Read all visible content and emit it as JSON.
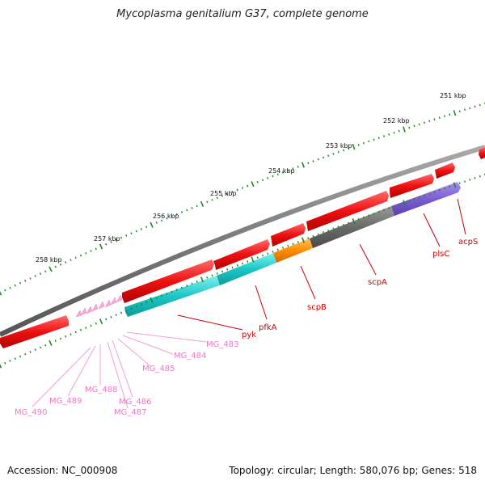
{
  "title": "Mycoplasma genitalium G37, complete genome",
  "footer": {
    "accession": "Accession: NC_000908",
    "summary": "Topology: circular; Length: 580,076 bp; Genes: 518"
  },
  "colors": {
    "red_gene": "#ee1111",
    "cyan_gene": "#1cc6c6",
    "orange_gene": "#ff8c00",
    "gray_gene": "#6a6a6a",
    "purple_gene": "#7b5fd0",
    "pink_gene": "#f7a8d8",
    "backbone": "#7a7a7a",
    "tick": "#228822",
    "dark_label": "#cc0000",
    "pink_label": "#e87cc0"
  },
  "scale_labels": [
    "251 kbp",
    "252 kbp",
    "253 kbp",
    "254 kbp",
    "255 kbp",
    "256 kbp",
    "257 kbp",
    "258 kbp"
  ],
  "gene_labels": {
    "red": [
      "pyk",
      "pfkA",
      "scpB",
      "scpA",
      "plsC",
      "acpS"
    ],
    "pink": [
      "MG_483",
      "MG_484",
      "MG_485",
      "MG_486",
      "MG_487",
      "MG_488",
      "MG_489",
      "MG_490"
    ]
  }
}
